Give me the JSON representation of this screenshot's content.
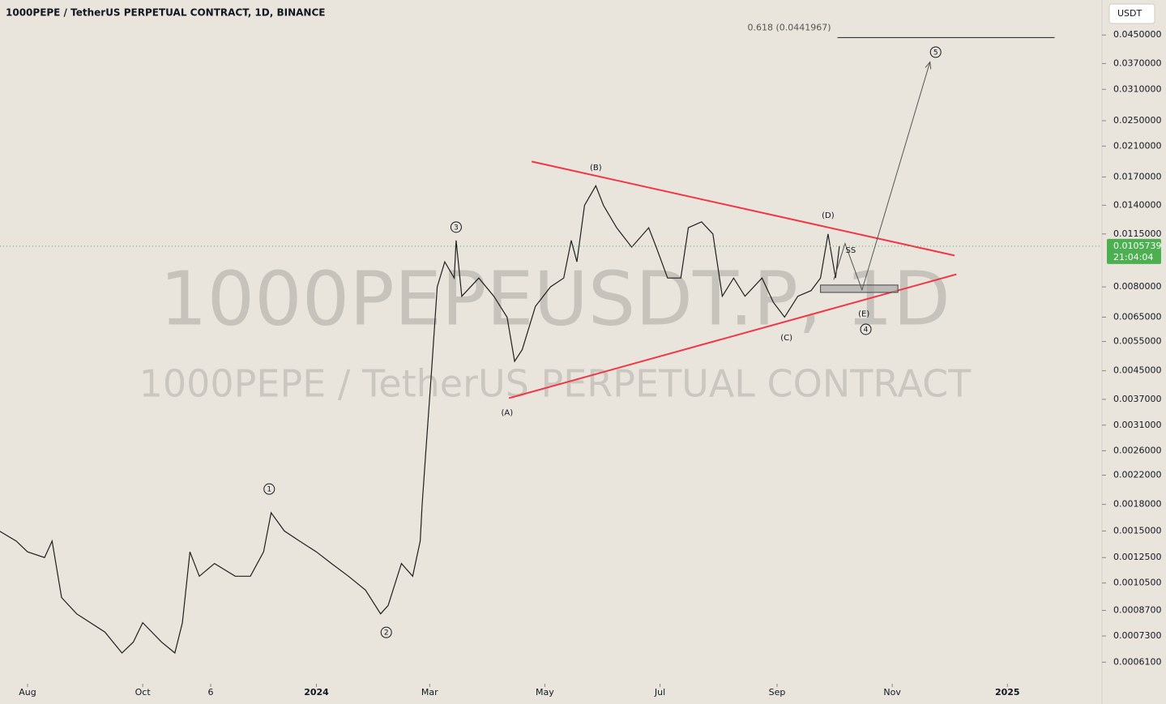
{
  "chart_data": {
    "type": "line",
    "title": "1000PEPE / TetherUS PERPETUAL CONTRACT, 1D, BINANCE",
    "currency": "USDT",
    "watermark": "1000PEPEUSDT.P, 1D",
    "watermark_subtitle": "1000PEPE / TetherUS PERPETUAL CONTRACT",
    "log_y": true,
    "color": "#1f1f1f",
    "x": [
      -15,
      -6,
      0,
      9,
      13,
      18,
      26,
      41,
      50,
      56,
      61,
      71,
      78,
      82,
      86,
      91,
      99,
      110,
      118,
      125,
      129,
      136,
      144,
      153,
      161,
      170,
      179,
      187,
      191,
      198,
      204,
      208,
      209,
      211,
      214,
      217,
      221,
      226,
      227,
      230,
      239,
      247,
      254,
      258,
      262,
      269,
      277,
      284,
      288,
      291,
      295,
      301,
      305,
      312,
      320,
      329,
      333,
      339,
      346,
      350,
      357,
      363,
      368,
      374,
      380,
      389,
      395,
      401,
      408,
      415,
      420,
      424,
      428,
      430
    ],
    "values": [
      0.0015,
      0.0014,
      0.0013,
      0.00125,
      0.0014,
      0.00095,
      0.00085,
      0.00075,
      0.00065,
      0.0007,
      0.0008,
      0.0007,
      0.00065,
      0.0008,
      0.0013,
      0.0011,
      0.0012,
      0.0011,
      0.0011,
      0.0013,
      0.0017,
      0.0015,
      0.0014,
      0.0013,
      0.0012,
      0.0011,
      0.001,
      0.00085,
      0.0009,
      0.0012,
      0.0011,
      0.0014,
      0.0018,
      0.0026,
      0.0045,
      0.008,
      0.0095,
      0.0085,
      0.011,
      0.0075,
      0.0085,
      0.0075,
      0.0065,
      0.0048,
      0.0052,
      0.007,
      0.008,
      0.0085,
      0.011,
      0.0095,
      0.014,
      0.016,
      0.014,
      0.012,
      0.0105,
      0.012,
      0.0105,
      0.0085,
      0.0085,
      0.012,
      0.0125,
      0.0115,
      0.0075,
      0.0085,
      0.0075,
      0.0085,
      0.0072,
      0.0065,
      0.0075,
      0.0078,
      0.0085,
      0.0115,
      0.0085,
      0.0105739
    ],
    "xlim": [
      -14.6,
      569.1
    ],
    "ylim": [
      0.000538,
      0.0572
    ],
    "xticks": [
      {
        "value": 0,
        "label": "Aug"
      },
      {
        "value": 61,
        "label": "Oct"
      },
      {
        "value": 97,
        "label": "6"
      },
      {
        "value": 153,
        "label": "2024",
        "bold": true
      },
      {
        "value": 213,
        "label": "Mar"
      },
      {
        "value": 274,
        "label": "May"
      },
      {
        "value": 335,
        "label": "Jul"
      },
      {
        "value": 397,
        "label": "Sep"
      },
      {
        "value": 458,
        "label": "Nov"
      },
      {
        "value": 519,
        "label": "2025",
        "bold": true
      }
    ],
    "yticks": [
      {
        "value": 0.045,
        "label": "0.0450000"
      },
      {
        "value": 0.037,
        "label": "0.0370000"
      },
      {
        "value": 0.031,
        "label": "0.0310000"
      },
      {
        "value": 0.025,
        "label": "0.0250000"
      },
      {
        "value": 0.021,
        "label": "0.0210000"
      },
      {
        "value": 0.017,
        "label": "0.0170000"
      },
      {
        "value": 0.014,
        "label": "0.0140000"
      },
      {
        "value": 0.0115,
        "label": "0.0115000"
      },
      {
        "value": 0.008,
        "label": "0.0080000"
      },
      {
        "value": 0.0065,
        "label": "0.0065000"
      },
      {
        "value": 0.0055,
        "label": "0.0055000"
      },
      {
        "value": 0.0045,
        "label": "0.0045000"
      },
      {
        "value": 0.0037,
        "label": "0.0037000"
      },
      {
        "value": 0.0031,
        "label": "0.0031000"
      },
      {
        "value": 0.0026,
        "label": "0.0026000"
      },
      {
        "value": 0.0022,
        "label": "0.0022000"
      },
      {
        "value": 0.0018,
        "label": "0.0018000"
      },
      {
        "value": 0.0015,
        "label": "0.0015000"
      },
      {
        "value": 0.00125,
        "label": "0.0012500"
      },
      {
        "value": 0.00105,
        "label": "0.0010500"
      },
      {
        "value": 0.00087,
        "label": "0.0008700"
      },
      {
        "value": 0.00073,
        "label": "0.0007300"
      },
      {
        "value": 0.00061,
        "label": "0.0006100"
      }
    ],
    "last_price": {
      "value": 0.0105739,
      "label": "0.0105739",
      "countdown": "21:04:04",
      "color": "#4caf50"
    },
    "trendlines": [
      {
        "color": "#f23645",
        "points": [
          [
            267,
            0.0189
          ],
          [
            491,
            0.00992
          ]
        ]
      },
      {
        "color": "#f23645",
        "points": [
          [
            255,
            0.00373
          ],
          [
            492,
            0.00872
          ]
        ]
      }
    ],
    "projection": {
      "color": "#555555",
      "points": [
        [
          427,
          0.0084
        ],
        [
          433,
          0.01077
        ],
        [
          442,
          0.00783
        ],
        [
          478,
          0.0374
        ]
      ]
    },
    "zone": {
      "color": "#9e9e9e",
      "x": [
        420,
        461
      ],
      "y": [
        0.0077,
        0.0081
      ]
    },
    "fib": {
      "label": "0.618 (0.0441967)",
      "value": 0.0441967,
      "x": [
        429,
        544
      ]
    },
    "annotations": [
      {
        "text": "(A)",
        "x": 254,
        "y": 0.00338
      },
      {
        "text": "(B)",
        "x": 301,
        "y": 0.01816
      },
      {
        "text": "(C)",
        "x": 402,
        "y": 0.00565
      },
      {
        "text": "(D)",
        "x": 424,
        "y": 0.0131
      },
      {
        "text": "(E)",
        "x": 443,
        "y": 0.00666
      },
      {
        "text": "SS",
        "x": 436,
        "y": 0.0103
      },
      {
        "text": "1",
        "x": 128,
        "y": 0.002,
        "circled": true
      },
      {
        "text": "2",
        "x": 190,
        "y": 0.000748,
        "circled": true
      },
      {
        "text": "3",
        "x": 227,
        "y": 0.01205,
        "circled": true
      },
      {
        "text": "4",
        "x": 444,
        "y": 0.00598,
        "circled": true
      },
      {
        "text": "5",
        "x": 481,
        "y": 0.04,
        "circled": true
      }
    ]
  }
}
